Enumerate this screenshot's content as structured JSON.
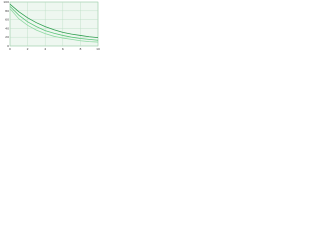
{
  "chart_data": {
    "type": "line",
    "x": [
      0,
      1,
      2,
      3,
      4,
      5,
      6,
      7,
      8,
      9,
      10
    ],
    "series": [
      {
        "color": "#2e9e4f",
        "values": [
          95,
          78,
          64,
          53,
          44,
          37,
          31,
          27,
          24,
          21,
          19
        ]
      },
      {
        "color": "#5cc47a",
        "values": [
          90,
          70,
          55,
          44,
          35,
          29,
          24,
          20,
          17,
          15,
          13
        ]
      },
      {
        "color": "#8fd9a3",
        "values": [
          85,
          62,
          47,
          36,
          28,
          22,
          18,
          15,
          12,
          10,
          9
        ]
      }
    ],
    "xlim": [
      0,
      10
    ],
    "xticks": [
      0,
      2,
      4,
      6,
      8,
      10
    ],
    "ylim": [
      0,
      100
    ],
    "yticks": [
      0,
      20,
      40,
      60,
      80,
      100
    ],
    "grid": true
  }
}
